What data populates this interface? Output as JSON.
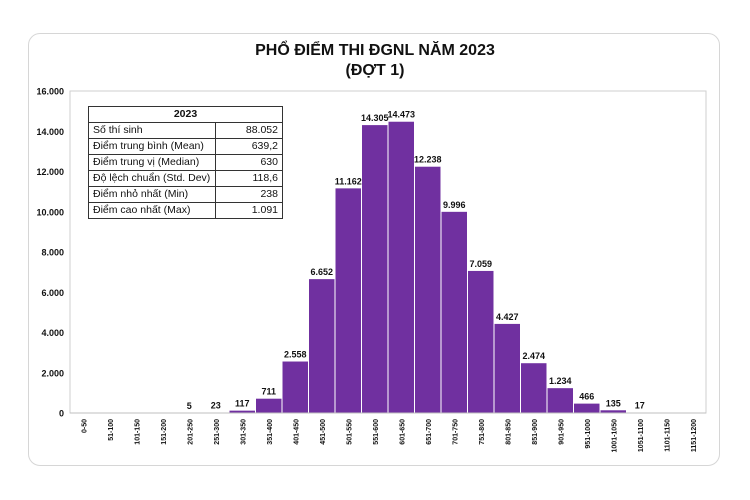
{
  "chart_data": {
    "type": "bar",
    "title": "PHỔ ĐIỂM THI ĐGNL NĂM 2023",
    "subtitle": "(ĐỢT 1)",
    "xlabel": "",
    "ylabel": "",
    "ylim": [
      0,
      16000
    ],
    "yticks": [
      "0",
      "2.000",
      "4.000",
      "6.000",
      "8.000",
      "10.000",
      "12.000",
      "14.000",
      "16.000"
    ],
    "categories": [
      "0-50",
      "51-100",
      "101-150",
      "151-200",
      "201-250",
      "251-300",
      "301-350",
      "351-400",
      "401-450",
      "451-500",
      "501-550",
      "551-600",
      "601-650",
      "651-700",
      "701-750",
      "751-800",
      "801-850",
      "851-900",
      "901-950",
      "951-1000",
      "1001-1050",
      "1051-1100",
      "1101-1150",
      "1151-1200"
    ],
    "values": [
      0,
      0,
      0,
      0,
      5,
      23,
      117,
      711,
      2558,
      6652,
      11162,
      14305,
      14473,
      12238,
      9996,
      7059,
      4427,
      2474,
      1234,
      466,
      135,
      17,
      0,
      0
    ],
    "labels": [
      "",
      "",
      "",
      "",
      "5",
      "23",
      "117",
      "711",
      "2.558",
      "6.652",
      "11.162",
      "14.305",
      "14.473",
      "12.238",
      "9.996",
      "7.059",
      "4.427",
      "2.474",
      "1.234",
      "466",
      "135",
      "17",
      "",
      ""
    ],
    "bar_color": "#7030a0"
  },
  "stats_table": {
    "header": "2023",
    "rows": [
      {
        "label": "Số thí sinh",
        "value": "88.052"
      },
      {
        "label": "Điểm trung bình (Mean)",
        "value": "639,2"
      },
      {
        "label": "Điểm trung vị (Median)",
        "value": "630"
      },
      {
        "label": "Độ lệch chuẩn (Std. Dev)",
        "value": "118,6"
      },
      {
        "label": "Điểm nhỏ nhất (Min)",
        "value": "238"
      },
      {
        "label": "Điểm cao nhất (Max)",
        "value": "1.091"
      }
    ]
  }
}
